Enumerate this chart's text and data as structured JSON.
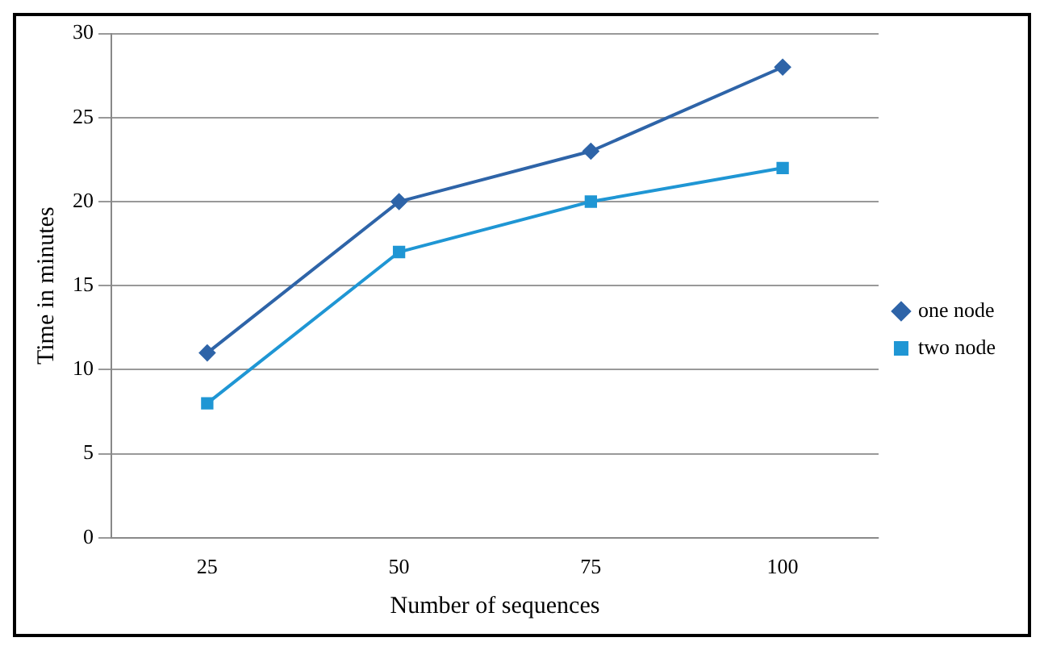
{
  "chart_data": {
    "type": "line",
    "xlabel": "Number of sequences",
    "ylabel": "Time in minutes",
    "categories": [
      "25",
      "50",
      "75",
      "100"
    ],
    "series": [
      {
        "name": "one node",
        "color": "#2e64a8",
        "values": [
          11,
          20,
          23,
          28
        ],
        "marker": "diamond"
      },
      {
        "name": "two node",
        "color": "#1f96d4",
        "values": [
          8,
          17,
          20,
          22
        ],
        "marker": "square"
      }
    ],
    "ylim": [
      0,
      30
    ],
    "yticks": [
      0,
      5,
      10,
      15,
      20,
      25,
      30
    ],
    "grid": "y",
    "legend": "right",
    "line_style": "solid"
  }
}
